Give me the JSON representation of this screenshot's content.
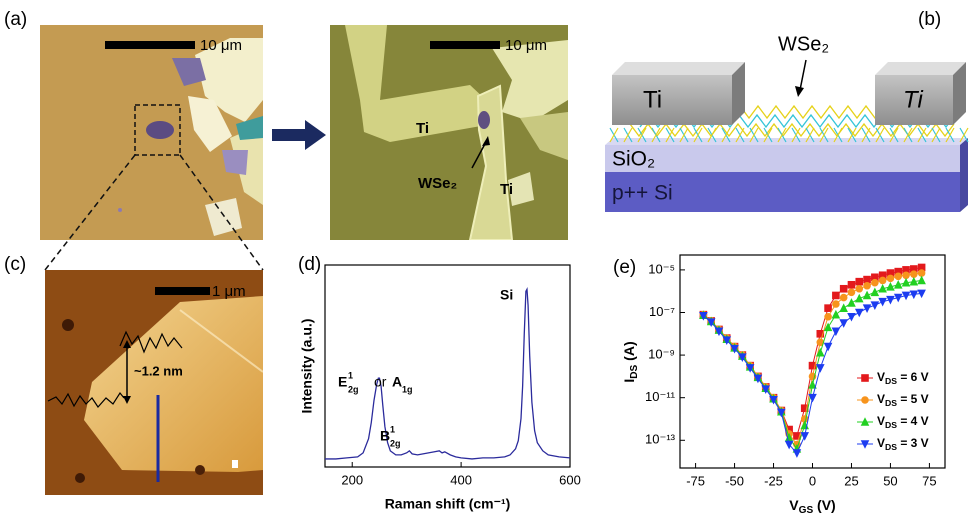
{
  "panels": {
    "a": {
      "label": "(a)",
      "left_image": {
        "scale_bar": "10 μm"
      },
      "right_image": {
        "scale_bar": "10 μm",
        "labels": [
          "Ti",
          "WSe₂",
          "Ti"
        ]
      }
    },
    "b": {
      "label": "(b)",
      "labels": [
        "WSe₂",
        "Ti",
        "Ti",
        "SiO₂",
        "p++ Si"
      ]
    },
    "c": {
      "label": "(c)",
      "scale_bar": "1 μm",
      "height_label": "~1.2 nm"
    }
  },
  "chart_data": [
    {
      "type": "line",
      "panel_label": "(d)",
      "x_label": "Raman shift (cm⁻¹)",
      "y_label": "Intensity (a.u.)",
      "x": [
        150,
        170,
        190,
        210,
        220,
        230,
        235,
        240,
        245,
        248,
        250,
        253,
        256,
        260,
        265,
        270,
        280,
        290,
        300,
        305,
        310,
        320,
        330,
        340,
        350,
        360,
        365,
        370,
        380,
        390,
        400,
        420,
        440,
        460,
        480,
        490,
        500,
        505,
        510,
        513,
        516,
        519,
        521,
        523,
        526,
        530,
        535,
        540,
        550,
        560,
        580,
        600
      ],
      "series": [
        {
          "color": "#2b2b9c",
          "values": [
            0.04,
            0.04,
            0.045,
            0.05,
            0.07,
            0.14,
            0.22,
            0.33,
            0.41,
            0.44,
            0.44,
            0.4,
            0.31,
            0.2,
            0.12,
            0.08,
            0.06,
            0.06,
            0.07,
            0.08,
            0.065,
            0.06,
            0.065,
            0.07,
            0.075,
            0.08,
            0.07,
            0.075,
            0.06,
            0.05,
            0.045,
            0.04,
            0.045,
            0.045,
            0.05,
            0.06,
            0.09,
            0.13,
            0.24,
            0.4,
            0.66,
            0.87,
            0.88,
            0.8,
            0.55,
            0.32,
            0.18,
            0.12,
            0.08,
            0.06,
            0.05,
            0.045
          ]
        }
      ],
      "xlim": [
        150,
        600
      ],
      "xticks": [
        200,
        400,
        600
      ],
      "ylim": [
        0,
        1
      ],
      "annotations": [
        {
          "text": "E",
          "sup": "1",
          "sub": "2g"
        },
        {
          "text": "or"
        },
        {
          "text": "A",
          "sub": "1g"
        },
        {
          "text": "B",
          "sup": "1",
          "sub": "2g"
        },
        {
          "text": "Si"
        }
      ]
    },
    {
      "type": "line",
      "panel_label": "(e)",
      "x_label": "VGS (V)",
      "y_label": "IDS (A)",
      "log_y": true,
      "x": [
        -70,
        -65,
        -60,
        -55,
        -50,
        -45,
        -40,
        -35,
        -30,
        -25,
        -20,
        -15,
        -10,
        -5,
        0,
        5,
        10,
        15,
        20,
        25,
        30,
        35,
        40,
        45,
        50,
        55,
        60,
        65,
        70
      ],
      "series": [
        {
          "name": "VDS = 6 V",
          "color": "#e3191c",
          "marker": "square",
          "values": [
            7.9e-08,
            4e-08,
            1.6e-08,
            6.3e-09,
            2.5e-09,
            1e-09,
            3.2e-10,
            1e-10,
            3.2e-11,
            1e-11,
            2.5e-12,
            3.2e-13,
            1.6e-13,
            3.2e-12,
            3.2e-10,
            1e-08,
            1.6e-07,
            6.3e-07,
            1.3e-06,
            2e-06,
            2.8e-06,
            3.5e-06,
            4.5e-06,
            5.6e-06,
            7.1e-06,
            8.3e-06,
            1e-05,
            1.1e-05,
            1.3e-05
          ]
        },
        {
          "name": "VDS = 5 V",
          "color": "#f7941d",
          "marker": "circle",
          "values": [
            7.9e-08,
            4e-08,
            1.6e-08,
            6.3e-09,
            2.5e-09,
            1e-09,
            3.2e-10,
            1e-10,
            3.2e-11,
            1e-11,
            2.5e-12,
            2e-13,
            6.3e-14,
            1e-12,
            1e-10,
            4e-09,
            6.3e-08,
            2.5e-07,
            5e-07,
            8.9e-07,
            1.3e-06,
            1.8e-06,
            2.5e-06,
            3.2e-06,
            4e-06,
            5e-06,
            5.6e-06,
            6.3e-06,
            7.1e-06
          ]
        },
        {
          "name": "VDS = 4 V",
          "color": "#22d022",
          "marker": "triangle-up",
          "values": [
            7.5e-08,
            3.8e-08,
            1.5e-08,
            5.6e-09,
            2.2e-09,
            9e-10,
            2.8e-10,
            9e-11,
            2.8e-11,
            9e-12,
            2.2e-12,
            1.3e-13,
            4e-14,
            5e-13,
            4e-11,
            1.3e-09,
            2e-08,
            7.9e-08,
            1.6e-07,
            2.8e-07,
            4.5e-07,
            6.3e-07,
            8.9e-07,
            1.3e-06,
            1.6e-06,
            2e-06,
            2.5e-06,
            2.8e-06,
            3.2e-06
          ]
        },
        {
          "name": "VDS = 3 V",
          "color": "#1c3cf0",
          "marker": "triangle-down",
          "values": [
            7e-08,
            3.5e-08,
            1.3e-08,
            5e-09,
            2e-09,
            8e-10,
            2.5e-10,
            8e-11,
            2.5e-11,
            8e-12,
            2e-12,
            6.3e-14,
            2.5e-14,
            1.6e-13,
            1e-11,
            2.5e-10,
            2.5e-09,
            1.3e-08,
            3.2e-08,
            6.3e-08,
            1e-07,
            1.6e-07,
            2.2e-07,
            3.2e-07,
            4e-07,
            5e-07,
            6.3e-07,
            7.1e-07,
            7.9e-07
          ]
        }
      ],
      "xlim": [
        -85,
        85
      ],
      "xticks": [
        -75,
        -50,
        -25,
        0,
        25,
        50,
        75
      ],
      "ylim": [
        5e-15,
        5e-05
      ],
      "yticks": [
        {
          "value": 1e-05,
          "label": "10⁻⁵"
        },
        {
          "value": 1e-07,
          "label": "10⁻⁷"
        },
        {
          "value": 1e-09,
          "label": "10⁻⁹"
        },
        {
          "value": 1e-11,
          "label": "10⁻¹¹"
        },
        {
          "value": 1e-13,
          "label": "10⁻¹³"
        }
      ],
      "legend": "lower right"
    }
  ]
}
